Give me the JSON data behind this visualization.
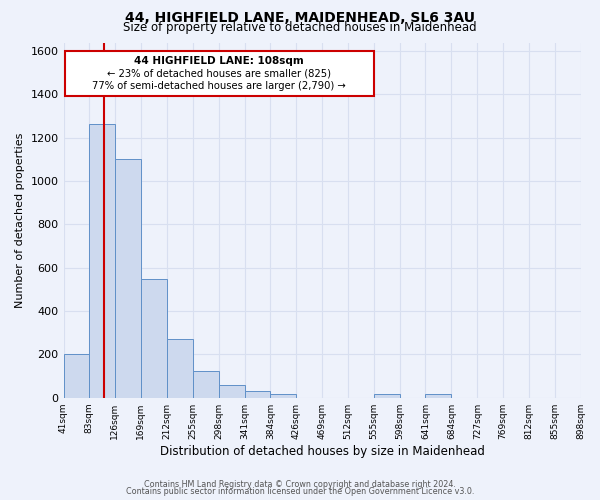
{
  "title": "44, HIGHFIELD LANE, MAIDENHEAD, SL6 3AU",
  "subtitle": "Size of property relative to detached houses in Maidenhead",
  "xlabel": "Distribution of detached houses by size in Maidenhead",
  "ylabel": "Number of detached properties",
  "bar_color": "#cdd9ee",
  "bar_edge_color": "#6090c8",
  "background_color": "#eef2fb",
  "grid_color": "#d8dff0",
  "annotation_box_color": "#cc0000",
  "annotation_line_color": "#cc0000",
  "property_line_x": 108,
  "annotation_title": "44 HIGHFIELD LANE: 108sqm",
  "annotation_line1": "← 23% of detached houses are smaller (825)",
  "annotation_line2": "77% of semi-detached houses are larger (2,790) →",
  "bin_edges": [
    41,
    83,
    126,
    169,
    212,
    255,
    298,
    341,
    384,
    426,
    469,
    512,
    555,
    598,
    641,
    684,
    727,
    769,
    812,
    855,
    898
  ],
  "bin_heights": [
    200,
    1265,
    1100,
    550,
    270,
    125,
    60,
    30,
    15,
    0,
    0,
    0,
    15,
    0,
    15,
    0,
    0,
    0,
    0,
    0
  ],
  "ylim": [
    0,
    1640
  ],
  "yticks": [
    0,
    200,
    400,
    600,
    800,
    1000,
    1200,
    1400,
    1600
  ],
  "footer_line1": "Contains HM Land Registry data © Crown copyright and database right 2024.",
  "footer_line2": "Contains public sector information licensed under the Open Government Licence v3.0."
}
